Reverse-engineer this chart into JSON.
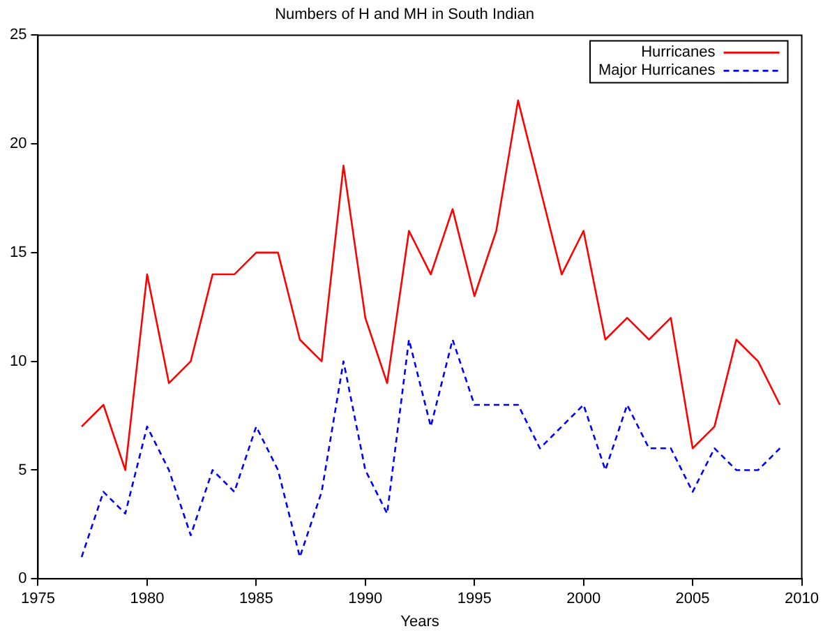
{
  "chart_data": {
    "type": "line",
    "title": "Numbers of H and MH in South Indian",
    "xlabel": "Years",
    "x": [
      1977,
      1978,
      1979,
      1980,
      1981,
      1982,
      1983,
      1984,
      1985,
      1986,
      1987,
      1988,
      1989,
      1990,
      1991,
      1992,
      1993,
      1994,
      1995,
      1996,
      1997,
      1998,
      1999,
      2000,
      2001,
      2002,
      2003,
      2004,
      2005,
      2006,
      2007,
      2008,
      2009
    ],
    "series": [
      {
        "name": "Hurricanes",
        "color": "#ff0000",
        "line_style": "solid",
        "values": [
          7,
          8,
          5,
          14,
          9,
          10,
          14,
          14,
          15,
          15,
          11,
          10,
          19,
          12,
          9,
          16,
          14,
          17,
          13,
          16,
          22,
          18,
          14,
          16,
          11,
          12,
          11,
          12,
          6,
          7,
          11,
          10,
          8
        ]
      },
      {
        "name": "Major Hurricanes",
        "color": "#0000ff",
        "line_style": "dashed",
        "values": [
          1,
          4,
          3,
          7,
          5,
          2,
          5,
          4,
          7,
          5,
          1,
          4,
          10,
          5,
          3,
          11,
          7,
          11,
          8,
          8,
          8,
          6,
          7,
          8,
          5,
          8,
          6,
          6,
          4,
          6,
          5,
          5,
          6
        ]
      }
    ],
    "xlim": [
      1975,
      2010
    ],
    "xticks": [
      1975,
      1980,
      1985,
      1990,
      1995,
      2000,
      2005,
      2010
    ],
    "ylim": [
      0,
      25
    ],
    "yticks": [
      0,
      5,
      10,
      15,
      20,
      25
    ],
    "grid": false,
    "legend": "top right",
    "marker": "none"
  }
}
